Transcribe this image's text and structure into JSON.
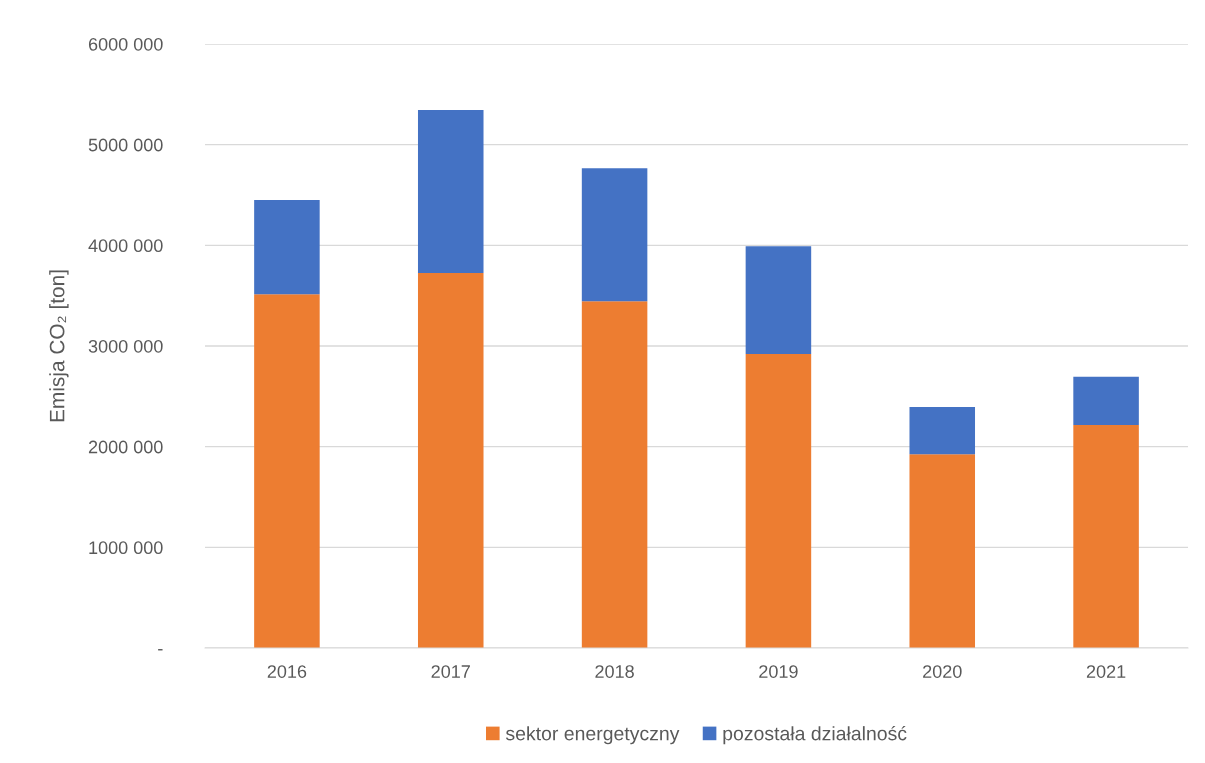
{
  "chart_data": {
    "type": "bar",
    "stacked": true,
    "ylabel": "Emisja CO₂ [ton]",
    "categories": [
      "2016",
      "2017",
      "2018",
      "2019",
      "2020",
      "2021"
    ],
    "series": [
      {
        "name": "sektor energetyczny",
        "color": "#ed7d31",
        "values": [
          3515000,
          3725000,
          3445000,
          2920000,
          1925000,
          2215000
        ]
      },
      {
        "name": "pozostała działalność",
        "color": "#4472c4",
        "values": [
          935000,
          1620000,
          1320000,
          1070000,
          470000,
          480000
        ]
      }
    ],
    "ylim": [
      0,
      6000000
    ],
    "yticks": [
      {
        "value": 0,
        "label": "-"
      },
      {
        "value": 1000000,
        "label": "1000 000"
      },
      {
        "value": 2000000,
        "label": "2000 000"
      },
      {
        "value": 3000000,
        "label": "3000 000"
      },
      {
        "value": 4000000,
        "label": "4000 000"
      },
      {
        "value": 5000000,
        "label": "5000 000"
      },
      {
        "value": 6000000,
        "label": "6000 000"
      }
    ],
    "grid": "y",
    "legend": "bottom"
  }
}
